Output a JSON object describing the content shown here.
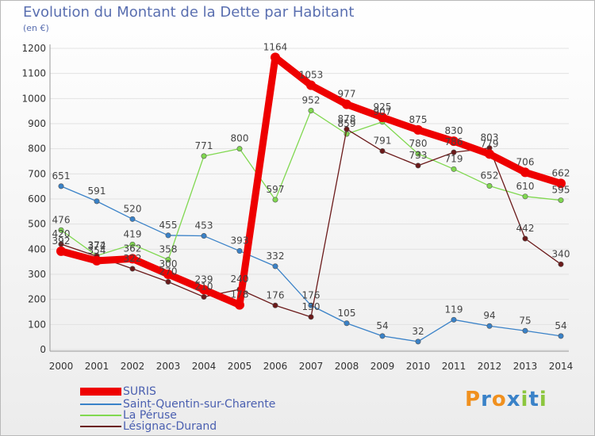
{
  "header": {
    "title": "Evolution du Montant de la Dette par Habitant",
    "unit": "(en €)"
  },
  "logo": {
    "text": "Proxiti",
    "letter_colors": [
      "#f0901e",
      "#3a82c8",
      "#f0901e",
      "#3a82c8",
      "#8cc63e",
      "#3a82c8",
      "#8cc63e"
    ]
  },
  "chart_data": {
    "type": "line",
    "x": [
      "2000",
      "2001",
      "2002",
      "2003",
      "2004",
      "2005",
      "2006",
      "2007",
      "2008",
      "2009",
      "2010",
      "2011",
      "2012",
      "2013",
      "2014"
    ],
    "ylim": [
      0,
      1200
    ],
    "yticks": [
      0,
      100,
      200,
      300,
      400,
      500,
      600,
      700,
      800,
      900,
      1000,
      1100,
      1200
    ],
    "grid": "horizontal",
    "legend_position": "bottom-left",
    "series": [
      {
        "name": "SURIS",
        "color": "#ee0000",
        "values": [
          392,
          354,
          362,
          300,
          239,
          178,
          1164,
          1053,
          977,
          925,
          875,
          830,
          779,
          706,
          662
        ]
      },
      {
        "name": "Saint-Quentin-sur-Charente",
        "color": "#3a82c8",
        "values": [
          651,
          591,
          520,
          455,
          453,
          393,
          332,
          176,
          105,
          54,
          32,
          119,
          94,
          75,
          54
        ]
      },
      {
        "name": "La Péruse",
        "color": "#80d850",
        "values": [
          476,
          374,
          419,
          358,
          771,
          800,
          597,
          952,
          859,
          907,
          780,
          719,
          652,
          610,
          595
        ]
      },
      {
        "name": "Lésignac-Durand",
        "color": "#6b1a1a",
        "values": [
          420,
          372,
          322,
          270,
          210,
          240,
          176,
          130,
          878,
          791,
          733,
          786,
          803,
          442,
          340
        ]
      }
    ]
  }
}
